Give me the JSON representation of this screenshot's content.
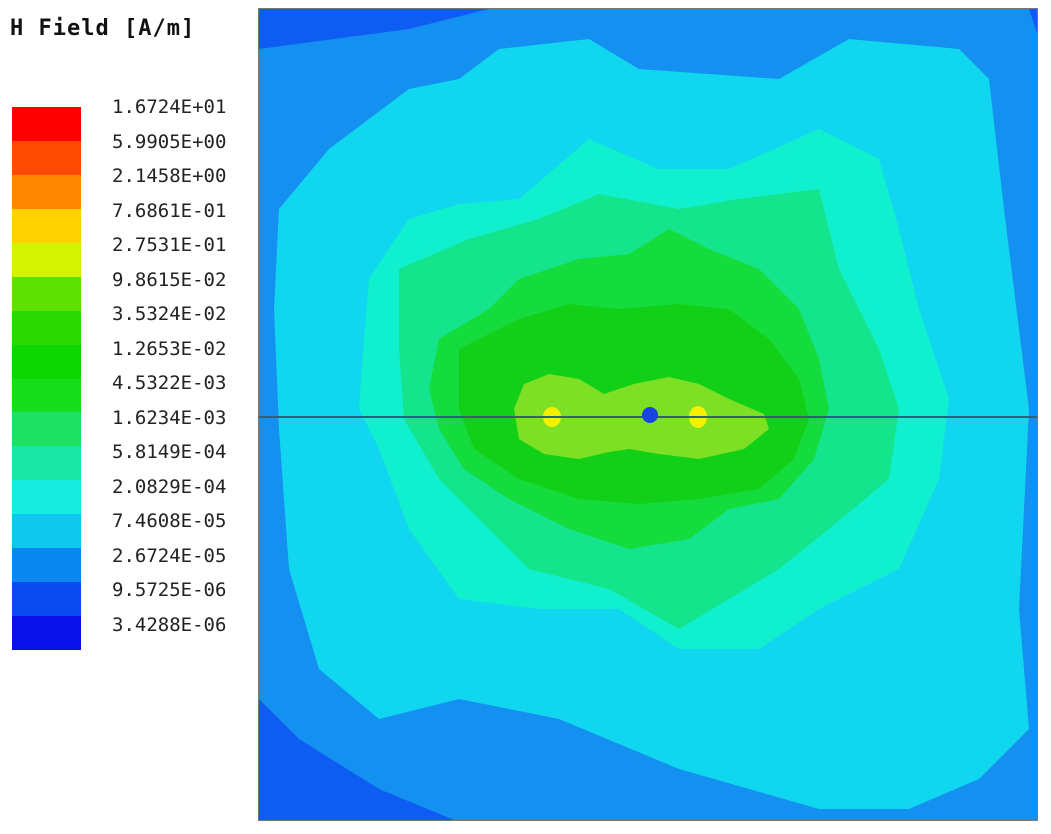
{
  "legend": {
    "title": "H Field [A/m]",
    "labels": [
      "1.6724E+01",
      "5.9905E+00",
      "2.1458E+00",
      "7.6861E-01",
      "2.7531E-01",
      "9.8615E-02",
      "3.5324E-02",
      "1.2653E-02",
      "4.5322E-03",
      "1.6234E-03",
      "5.8149E-04",
      "2.0829E-04",
      "7.4608E-05",
      "2.6724E-05",
      "9.5725E-06",
      "3.4288E-06"
    ],
    "colors": [
      "#ff0000",
      "#ff4a00",
      "#ff8800",
      "#ffd200",
      "#d2f400",
      "#5ee000",
      "#2bd900",
      "#0ed600",
      "#17dd1a",
      "#1ee065",
      "#1ae6a6",
      "#16ecdf",
      "#0fc8ee",
      "#0a88f0",
      "#0a4aee",
      "#0a10e8"
    ]
  },
  "plot": {
    "contour_colors": {
      "outer_blue": "#0f5cf2",
      "level_1": "#1390f0",
      "level_2": "#10d6f0",
      "level_3": "#10f0cf",
      "level_4": "#14e58c",
      "level_5": "#14dc3c",
      "level_6": "#12d018",
      "core": "#7ee024",
      "hotspot": "#f5f000",
      "source_dot": "#1a44e0",
      "wire": "#2f5f7c"
    }
  }
}
